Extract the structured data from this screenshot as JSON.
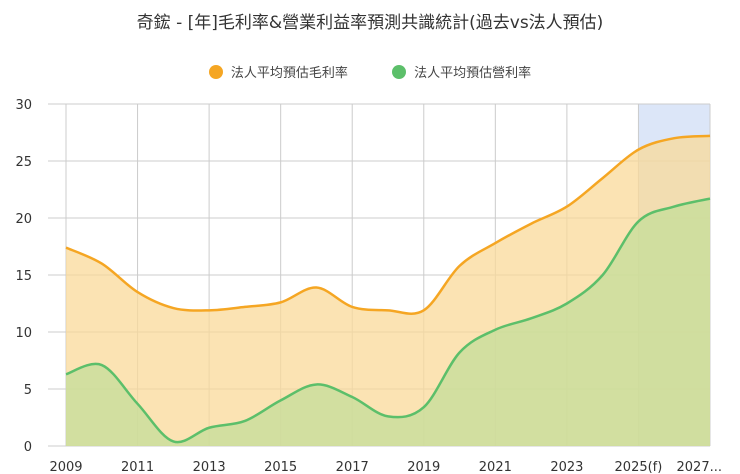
{
  "title": "奇鋐 - [年]毛利率&營業利益率預測共識統計(過去vs法人預估)",
  "chart_data": {
    "type": "area",
    "title": "奇鋐 - [年]毛利率&營業利益率預測共識統計(過去vs法人預估)",
    "x": [
      2009,
      2010,
      2011,
      2012,
      2013,
      2014,
      2015,
      2016,
      2017,
      2018,
      2019,
      2020,
      2021,
      2022,
      2023,
      2024,
      2025,
      2026,
      2027
    ],
    "x_tick_labels": [
      "2009",
      "2011",
      "2013",
      "2015",
      "2017",
      "2019",
      "2021",
      "2023",
      "2025(f)",
      "2027..."
    ],
    "x_tick_years": [
      2009,
      2011,
      2013,
      2015,
      2017,
      2019,
      2021,
      2023,
      2025,
      2027
    ],
    "ylim": [
      0,
      30
    ],
    "yticks": [
      0,
      5,
      10,
      15,
      20,
      25,
      30
    ],
    "grid": true,
    "forecast_range": [
      2025,
      2027
    ],
    "forecast_color": "#dce6f8",
    "series": [
      {
        "name": "法人平均預估毛利率",
        "color": "#f5a623",
        "fill": "#fad999",
        "values": [
          17.4,
          16.0,
          13.5,
          12.1,
          11.9,
          12.2,
          12.6,
          13.9,
          12.2,
          11.9,
          11.9,
          15.8,
          17.8,
          19.5,
          21.0,
          23.5,
          26.0,
          27.0,
          27.2
        ]
      },
      {
        "name": "法人平均預估營利率",
        "color": "#5cbf6a",
        "fill": "#c4dd9a",
        "values": [
          6.3,
          7.1,
          3.7,
          0.4,
          1.6,
          2.2,
          4.0,
          5.4,
          4.3,
          2.6,
          3.4,
          8.2,
          10.2,
          11.2,
          12.5,
          15.0,
          19.7,
          21.0,
          21.7
        ]
      }
    ]
  }
}
